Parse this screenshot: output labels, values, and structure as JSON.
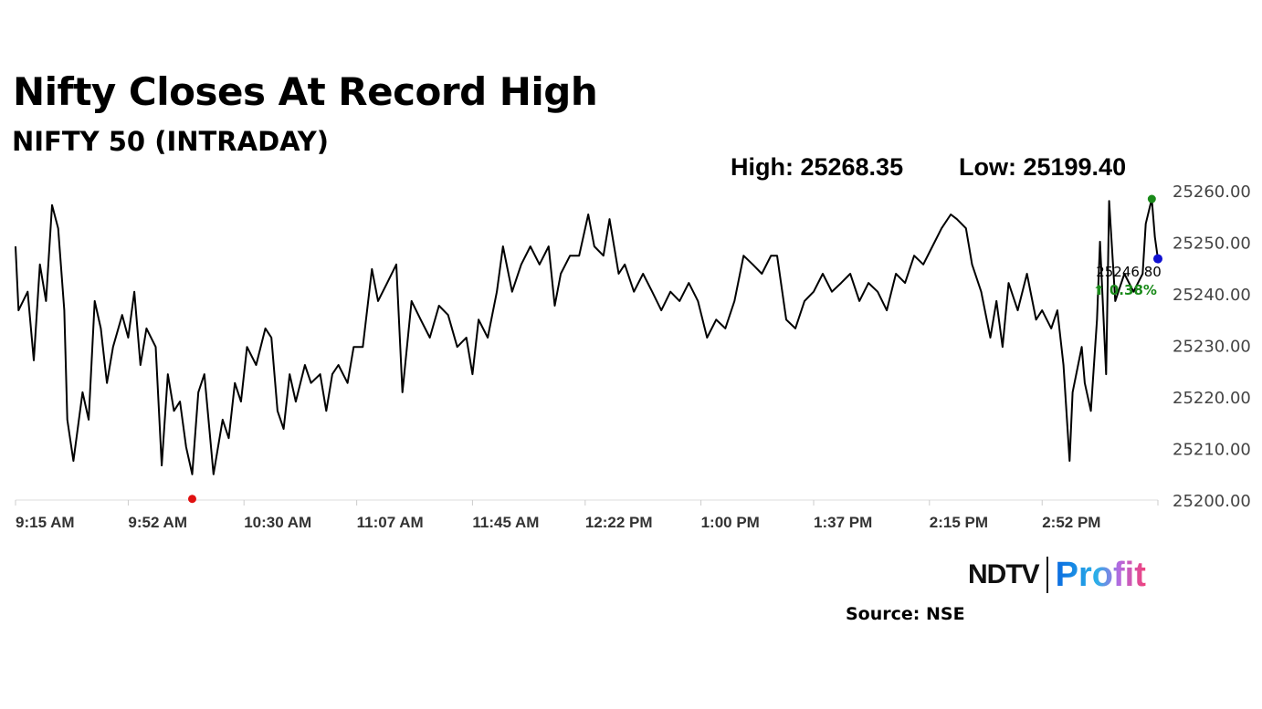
{
  "chart_data": {
    "type": "line",
    "title": "Nifty Closes At Record High",
    "subtitle": "NIFTY 50 (INTRADAY)",
    "high_label": "High: 25268.35",
    "low_label": "Low: 25199.40",
    "last_value_label": "25246.80",
    "change_label": "⬆ 0.38%",
    "xlim": [
      "09:15",
      "15:30"
    ],
    "ylim": [
      25200,
      25260
    ],
    "grid": false,
    "x_ticks": [
      "9:15 AM",
      "9:52 AM",
      "10:30 AM",
      "11:07 AM",
      "11:45 AM",
      "12:22 PM",
      "1:00 PM",
      "1:37 PM",
      "2:15 PM",
      "2:52 PM"
    ],
    "x_tick_times": [
      "09:15",
      "09:52",
      "10:30",
      "11:07",
      "11:45",
      "12:22",
      "13:00",
      "13:37",
      "14:15",
      "14:52"
    ],
    "y_ticks": [
      "25200.00",
      "25210.00",
      "25220.00",
      "25230.00",
      "25240.00",
      "25250.00",
      "25260.00"
    ],
    "colors": {
      "line": "#000000",
      "high_marker": "#1a8a1a",
      "low_marker": "#e01010",
      "last_marker": "#1010d0",
      "change": "#1a8a1a"
    },
    "markers": {
      "high_time": "15:28",
      "low_time": "10:13",
      "last_time": "15:30"
    },
    "series": [
      {
        "points": [
          [
            "09:15",
            25249.2
          ],
          [
            "09:16",
            25236.8
          ],
          [
            "09:19",
            25240.4
          ],
          [
            "09:21",
            25227.1
          ],
          [
            "09:23",
            25245.7
          ],
          [
            "09:25",
            25238.6
          ],
          [
            "09:27",
            25257.2
          ],
          [
            "09:29",
            25252.7
          ],
          [
            "09:31",
            25236.8
          ],
          [
            "09:32",
            25215.6
          ],
          [
            "09:34",
            25207.6
          ],
          [
            "09:37",
            25220.9
          ],
          [
            "09:39",
            25215.6
          ],
          [
            "09:41",
            25238.6
          ],
          [
            "09:43",
            25233.3
          ],
          [
            "09:45",
            25222.7
          ],
          [
            "09:47",
            25229.7
          ],
          [
            "09:50",
            25235.9
          ],
          [
            "09:52",
            25231.5
          ],
          [
            "09:54",
            25240.4
          ],
          [
            "09:56",
            25226.2
          ],
          [
            "09:58",
            25233.3
          ],
          [
            "10:01",
            25229.7
          ],
          [
            "10:03",
            25206.7
          ],
          [
            "10:05",
            25224.4
          ],
          [
            "10:07",
            25217.3
          ],
          [
            "10:09",
            25219.1
          ],
          [
            "10:11",
            25210.3
          ],
          [
            "10:13",
            25205.0
          ],
          [
            "10:15",
            25220.9
          ],
          [
            "10:17",
            25224.4
          ],
          [
            "10:20",
            25205.0
          ],
          [
            "10:23",
            25215.6
          ],
          [
            "10:25",
            25212.0
          ],
          [
            "10:27",
            25222.7
          ],
          [
            "10:29",
            25219.1
          ],
          [
            "10:31",
            25229.7
          ],
          [
            "10:34",
            25226.2
          ],
          [
            "10:37",
            25233.3
          ],
          [
            "10:39",
            25231.5
          ],
          [
            "10:41",
            25217.3
          ],
          [
            "10:43",
            25213.8
          ],
          [
            "10:45",
            25224.4
          ],
          [
            "10:47",
            25219.1
          ],
          [
            "10:50",
            25226.2
          ],
          [
            "10:52",
            25222.7
          ],
          [
            "10:55",
            25224.4
          ],
          [
            "10:57",
            25217.3
          ],
          [
            "10:59",
            25224.4
          ],
          [
            "11:01",
            25226.2
          ],
          [
            "11:04",
            25222.7
          ],
          [
            "11:06",
            25229.7
          ],
          [
            "11:09",
            25229.7
          ],
          [
            "11:12",
            25244.8
          ],
          [
            "11:14",
            25238.6
          ],
          [
            "11:17",
            25242.1
          ],
          [
            "11:20",
            25245.7
          ],
          [
            "11:22",
            25220.9
          ],
          [
            "11:25",
            25238.6
          ],
          [
            "11:28",
            25235.0
          ],
          [
            "11:31",
            25231.5
          ],
          [
            "11:34",
            25237.7
          ],
          [
            "11:37",
            25235.9
          ],
          [
            "11:40",
            25229.7
          ],
          [
            "11:43",
            25231.5
          ],
          [
            "11:45",
            25224.4
          ],
          [
            "11:47",
            25235.0
          ],
          [
            "11:50",
            25231.5
          ],
          [
            "11:53",
            25240.4
          ],
          [
            "11:55",
            25249.2
          ],
          [
            "11:58",
            25240.4
          ],
          [
            "12:01",
            25245.7
          ],
          [
            "12:04",
            25249.2
          ],
          [
            "12:07",
            25245.7
          ],
          [
            "12:10",
            25249.2
          ],
          [
            "12:12",
            25237.7
          ],
          [
            "12:14",
            25243.9
          ],
          [
            "12:17",
            25247.4
          ],
          [
            "12:20",
            25247.4
          ],
          [
            "12:23",
            25255.4
          ],
          [
            "12:25",
            25249.2
          ],
          [
            "12:28",
            25247.4
          ],
          [
            "12:30",
            25254.5
          ],
          [
            "12:33",
            25243.9
          ],
          [
            "12:35",
            25245.7
          ],
          [
            "12:38",
            25240.4
          ],
          [
            "12:41",
            25243.9
          ],
          [
            "12:44",
            25240.4
          ],
          [
            "12:47",
            25236.8
          ],
          [
            "12:50",
            25240.4
          ],
          [
            "12:53",
            25238.6
          ],
          [
            "12:56",
            25242.1
          ],
          [
            "12:59",
            25238.6
          ],
          [
            "13:02",
            25231.5
          ],
          [
            "13:05",
            25235.0
          ],
          [
            "13:08",
            25233.3
          ],
          [
            "13:11",
            25238.6
          ],
          [
            "13:14",
            25247.4
          ],
          [
            "13:17",
            25245.7
          ],
          [
            "13:20",
            25243.9
          ],
          [
            "13:23",
            25247.4
          ],
          [
            "13:25",
            25247.4
          ],
          [
            "13:28",
            25235.0
          ],
          [
            "13:31",
            25233.3
          ],
          [
            "13:34",
            25238.6
          ],
          [
            "13:37",
            25240.4
          ],
          [
            "13:40",
            25243.9
          ],
          [
            "13:43",
            25240.4
          ],
          [
            "13:46",
            25242.1
          ],
          [
            "13:49",
            25243.9
          ],
          [
            "13:52",
            25238.6
          ],
          [
            "13:55",
            25242.1
          ],
          [
            "13:58",
            25240.4
          ],
          [
            "14:01",
            25236.8
          ],
          [
            "14:04",
            25243.9
          ],
          [
            "14:07",
            25242.1
          ],
          [
            "14:10",
            25247.4
          ],
          [
            "14:13",
            25245.7
          ],
          [
            "14:16",
            25249.2
          ],
          [
            "14:19",
            25252.7
          ],
          [
            "14:22",
            25255.4
          ],
          [
            "14:24",
            25254.5
          ],
          [
            "14:27",
            25252.7
          ],
          [
            "14:29",
            25245.7
          ],
          [
            "14:32",
            25240.4
          ],
          [
            "14:35",
            25231.5
          ],
          [
            "14:37",
            25238.6
          ],
          [
            "14:39",
            25229.7
          ],
          [
            "14:41",
            25242.1
          ],
          [
            "14:44",
            25236.8
          ],
          [
            "14:47",
            25243.9
          ],
          [
            "14:50",
            25235.0
          ],
          [
            "14:52",
            25236.8
          ],
          [
            "14:55",
            25233.3
          ],
          [
            "14:57",
            25236.8
          ],
          [
            "14:59",
            25226.2
          ],
          [
            "15:01",
            25207.6
          ],
          [
            "15:02",
            25220.9
          ],
          [
            "15:05",
            25229.7
          ],
          [
            "15:06",
            25222.7
          ],
          [
            "15:08",
            25217.3
          ],
          [
            "15:10",
            25235.0
          ],
          [
            "15:11",
            25250.1
          ],
          [
            "15:13",
            25224.4
          ],
          [
            "15:14",
            25258.0
          ],
          [
            "15:16",
            25238.6
          ],
          [
            "15:19",
            25243.9
          ],
          [
            "15:22",
            25240.4
          ],
          [
            "15:25",
            25243.9
          ],
          [
            "15:26",
            25253.6
          ],
          [
            "15:28",
            25258.4
          ],
          [
            "15:29",
            25251.0
          ],
          [
            "15:30",
            25246.8
          ]
        ]
      }
    ]
  },
  "footer": {
    "brand_left": "NDTV",
    "brand_right": "Profit",
    "source": "Source: NSE"
  }
}
